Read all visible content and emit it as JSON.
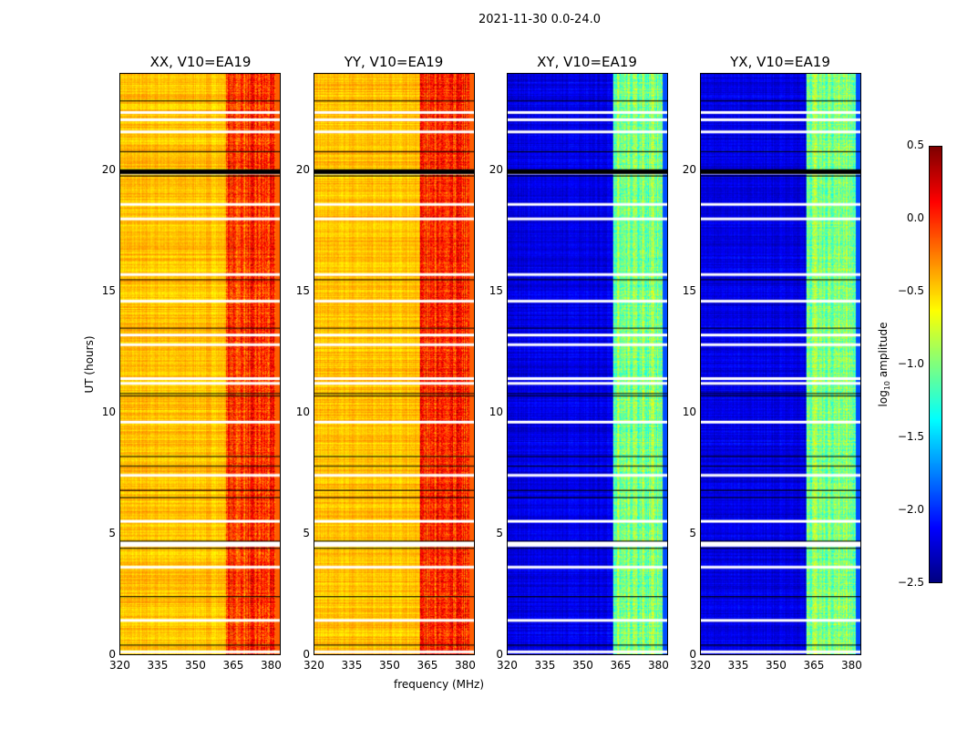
{
  "chart_data": {
    "type": "heatmap",
    "title": "2021-11-30 0.0-24.0",
    "xlabel": "frequency (MHz)",
    "ylabel": "UT (hours)",
    "xlim": [
      320,
      384
    ],
    "ylim": [
      0,
      24
    ],
    "xticks": [
      "320",
      "335",
      "350",
      "365",
      "380"
    ],
    "yticks": [
      "0",
      "5",
      "10",
      "15",
      "20"
    ],
    "panels": [
      {
        "title": "XX, V10=EA19",
        "base": -0.45,
        "band": -0.05
      },
      {
        "title": "YY, V10=EA19",
        "base": -0.45,
        "band": 0.0
      },
      {
        "title": "XY, V10=EA19",
        "base": -2.2,
        "band": -1.0
      },
      {
        "title": "YX, V10=EA19",
        "base": -2.2,
        "band": -1.0
      }
    ],
    "band_range_mhz": [
      362,
      382
    ],
    "flagged_hours": [
      22.4,
      22.1,
      21.6,
      19.9,
      18.6,
      18.0,
      15.7,
      14.6,
      13.2,
      12.8,
      11.4,
      11.2,
      9.6,
      7.4,
      5.5,
      4.6,
      4.5,
      3.6,
      1.4,
      0.1
    ],
    "gap_hours": [
      22.9,
      20.8,
      20.0,
      19.8,
      15.5,
      13.5,
      10.8,
      10.7,
      8.2,
      7.8,
      6.8,
      6.5,
      4.7,
      4.4,
      2.4,
      0.4
    ],
    "colorbar": {
      "label": "log10 amplitude",
      "range": [
        -2.5,
        0.5
      ],
      "ticks": [
        "0.5",
        "0.0",
        "−0.5",
        "−1.0",
        "−1.5",
        "−2.0",
        "−2.5"
      ],
      "colormap": "jet"
    }
  }
}
